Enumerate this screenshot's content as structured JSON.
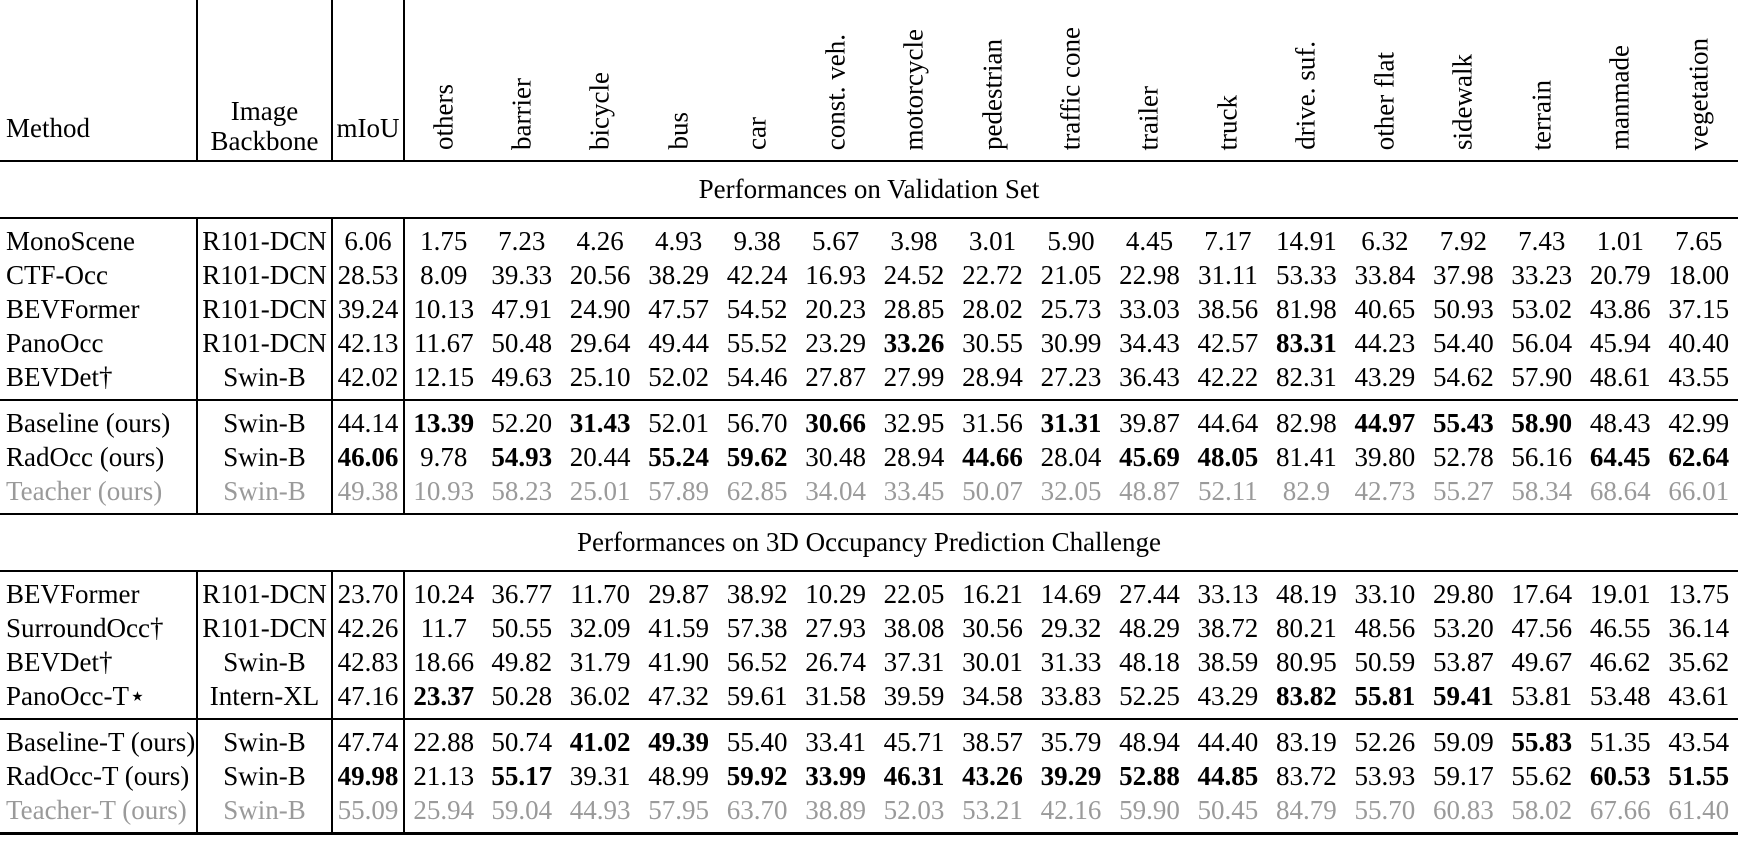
{
  "colors": {
    "text": "#000000",
    "muted_row": "#9a9a9a",
    "rule": "#000000"
  },
  "table": {
    "columns": {
      "method": "Method",
      "backbone_lines": [
        "Image",
        "Backbone"
      ],
      "miou": "mIoU",
      "classes": [
        "others",
        "barrier",
        "bicycle",
        "bus",
        "car",
        "const. veh.",
        "motorcycle",
        "pedestrian",
        "traffic cone",
        "trailer",
        "truck",
        "drive. suf.",
        "other flat",
        "sidewalk",
        "terrain",
        "manmade",
        "vegetation"
      ]
    },
    "sections": [
      {
        "title": "Performances on Validation Set",
        "groups": [
          {
            "rows": [
              {
                "method": "MonoScene",
                "backbone": "R101-DCN",
                "miou": "6.06",
                "miou_bold": false,
                "gray": false,
                "bold": [],
                "values": [
                  "1.75",
                  "7.23",
                  "4.26",
                  "4.93",
                  "9.38",
                  "5.67",
                  "3.98",
                  "3.01",
                  "5.90",
                  "4.45",
                  "7.17",
                  "14.91",
                  "6.32",
                  "7.92",
                  "7.43",
                  "1.01",
                  "7.65"
                ]
              },
              {
                "method": "CTF-Occ",
                "backbone": "R101-DCN",
                "miou": "28.53",
                "miou_bold": false,
                "gray": false,
                "bold": [],
                "values": [
                  "8.09",
                  "39.33",
                  "20.56",
                  "38.29",
                  "42.24",
                  "16.93",
                  "24.52",
                  "22.72",
                  "21.05",
                  "22.98",
                  "31.11",
                  "53.33",
                  "33.84",
                  "37.98",
                  "33.23",
                  "20.79",
                  "18.00"
                ]
              },
              {
                "method": "BEVFormer",
                "backbone": "R101-DCN",
                "miou": "39.24",
                "miou_bold": false,
                "gray": false,
                "bold": [],
                "values": [
                  "10.13",
                  "47.91",
                  "24.90",
                  "47.57",
                  "54.52",
                  "20.23",
                  "28.85",
                  "28.02",
                  "25.73",
                  "33.03",
                  "38.56",
                  "81.98",
                  "40.65",
                  "50.93",
                  "53.02",
                  "43.86",
                  "37.15"
                ]
              },
              {
                "method": "PanoOcc",
                "backbone": "R101-DCN",
                "miou": "42.13",
                "miou_bold": false,
                "gray": false,
                "bold": [
                  6,
                  11
                ],
                "values": [
                  "11.67",
                  "50.48",
                  "29.64",
                  "49.44",
                  "55.52",
                  "23.29",
                  "33.26",
                  "30.55",
                  "30.99",
                  "34.43",
                  "42.57",
                  "83.31",
                  "44.23",
                  "54.40",
                  "56.04",
                  "45.94",
                  "40.40"
                ]
              },
              {
                "method": "BEVDet†",
                "backbone": "Swin-B",
                "miou": "42.02",
                "miou_bold": false,
                "gray": false,
                "bold": [],
                "values": [
                  "12.15",
                  "49.63",
                  "25.10",
                  "52.02",
                  "54.46",
                  "27.87",
                  "27.99",
                  "28.94",
                  "27.23",
                  "36.43",
                  "42.22",
                  "82.31",
                  "43.29",
                  "54.62",
                  "57.90",
                  "48.61",
                  "43.55"
                ]
              }
            ]
          },
          {
            "rows": [
              {
                "method": "Baseline (ours)",
                "backbone": "Swin-B",
                "miou": "44.14",
                "miou_bold": false,
                "gray": false,
                "bold": [
                  0,
                  2,
                  5,
                  8,
                  12,
                  13,
                  14
                ],
                "values": [
                  "13.39",
                  "52.20",
                  "31.43",
                  "52.01",
                  "56.70",
                  "30.66",
                  "32.95",
                  "31.56",
                  "31.31",
                  "39.87",
                  "44.64",
                  "82.98",
                  "44.97",
                  "55.43",
                  "58.90",
                  "48.43",
                  "42.99"
                ]
              },
              {
                "method": "RadOcc (ours)",
                "backbone": "Swin-B",
                "miou": "46.06",
                "miou_bold": true,
                "gray": false,
                "bold": [
                  1,
                  3,
                  4,
                  7,
                  9,
                  10,
                  15,
                  16
                ],
                "values": [
                  "9.78",
                  "54.93",
                  "20.44",
                  "55.24",
                  "59.62",
                  "30.48",
                  "28.94",
                  "44.66",
                  "28.04",
                  "45.69",
                  "48.05",
                  "81.41",
                  "39.80",
                  "52.78",
                  "56.16",
                  "64.45",
                  "62.64"
                ]
              },
              {
                "method": "Teacher (ours)",
                "backbone": "Swin-B",
                "miou": "49.38",
                "miou_bold": false,
                "gray": true,
                "bold": [],
                "values": [
                  "10.93",
                  "58.23",
                  "25.01",
                  "57.89",
                  "62.85",
                  "34.04",
                  "33.45",
                  "50.07",
                  "32.05",
                  "48.87",
                  "52.11",
                  "82.9",
                  "42.73",
                  "55.27",
                  "58.34",
                  "68.64",
                  "66.01"
                ]
              }
            ]
          }
        ]
      },
      {
        "title": "Performances on 3D Occupancy Prediction Challenge",
        "groups": [
          {
            "rows": [
              {
                "method": "BEVFormer",
                "backbone": "R101-DCN",
                "miou": "23.70",
                "miou_bold": false,
                "gray": false,
                "bold": [],
                "values": [
                  "10.24",
                  "36.77",
                  "11.70",
                  "29.87",
                  "38.92",
                  "10.29",
                  "22.05",
                  "16.21",
                  "14.69",
                  "27.44",
                  "33.13",
                  "48.19",
                  "33.10",
                  "29.80",
                  "17.64",
                  "19.01",
                  "13.75"
                ]
              },
              {
                "method": "SurroundOcc†",
                "backbone": "R101-DCN",
                "miou": "42.26",
                "miou_bold": false,
                "gray": false,
                "bold": [],
                "values": [
                  "11.7",
                  "50.55",
                  "32.09",
                  "41.59",
                  "57.38",
                  "27.93",
                  "38.08",
                  "30.56",
                  "29.32",
                  "48.29",
                  "38.72",
                  "80.21",
                  "48.56",
                  "53.20",
                  "47.56",
                  "46.55",
                  "36.14"
                ]
              },
              {
                "method": "BEVDet†",
                "backbone": "Swin-B",
                "miou": "42.83",
                "miou_bold": false,
                "gray": false,
                "bold": [],
                "values": [
                  "18.66",
                  "49.82",
                  "31.79",
                  "41.90",
                  "56.52",
                  "26.74",
                  "37.31",
                  "30.01",
                  "31.33",
                  "48.18",
                  "38.59",
                  "80.95",
                  "50.59",
                  "53.87",
                  "49.67",
                  "46.62",
                  "35.62"
                ]
              },
              {
                "method": "PanoOcc-T⋆",
                "backbone": "Intern-XL",
                "miou": "47.16",
                "miou_bold": false,
                "gray": false,
                "bold": [
                  0,
                  11,
                  12,
                  13
                ],
                "values": [
                  "23.37",
                  "50.28",
                  "36.02",
                  "47.32",
                  "59.61",
                  "31.58",
                  "39.59",
                  "34.58",
                  "33.83",
                  "52.25",
                  "43.29",
                  "83.82",
                  "55.81",
                  "59.41",
                  "53.81",
                  "53.48",
                  "43.61"
                ]
              }
            ]
          },
          {
            "rows": [
              {
                "method": "Baseline-T (ours)",
                "backbone": "Swin-B",
                "miou": "47.74",
                "miou_bold": false,
                "gray": false,
                "bold": [
                  2,
                  3,
                  14
                ],
                "values": [
                  "22.88",
                  "50.74",
                  "41.02",
                  "49.39",
                  "55.40",
                  "33.41",
                  "45.71",
                  "38.57",
                  "35.79",
                  "48.94",
                  "44.40",
                  "83.19",
                  "52.26",
                  "59.09",
                  "55.83",
                  "51.35",
                  "43.54"
                ]
              },
              {
                "method": "RadOcc-T (ours)",
                "backbone": "Swin-B",
                "miou": "49.98",
                "miou_bold": true,
                "gray": false,
                "bold": [
                  1,
                  4,
                  5,
                  6,
                  7,
                  8,
                  9,
                  10,
                  15,
                  16
                ],
                "values": [
                  "21.13",
                  "55.17",
                  "39.31",
                  "48.99",
                  "59.92",
                  "33.99",
                  "46.31",
                  "43.26",
                  "39.29",
                  "52.88",
                  "44.85",
                  "83.72",
                  "53.93",
                  "59.17",
                  "55.62",
                  "60.53",
                  "51.55"
                ]
              },
              {
                "method": "Teacher-T (ours)",
                "backbone": "Swin-B",
                "miou": "55.09",
                "miou_bold": false,
                "gray": true,
                "bold": [],
                "values": [
                  "25.94",
                  "59.04",
                  "44.93",
                  "57.95",
                  "63.70",
                  "38.89",
                  "52.03",
                  "53.21",
                  "42.16",
                  "59.90",
                  "50.45",
                  "84.79",
                  "55.70",
                  "60.83",
                  "58.02",
                  "67.66",
                  "61.40"
                ]
              }
            ]
          }
        ]
      }
    ]
  }
}
